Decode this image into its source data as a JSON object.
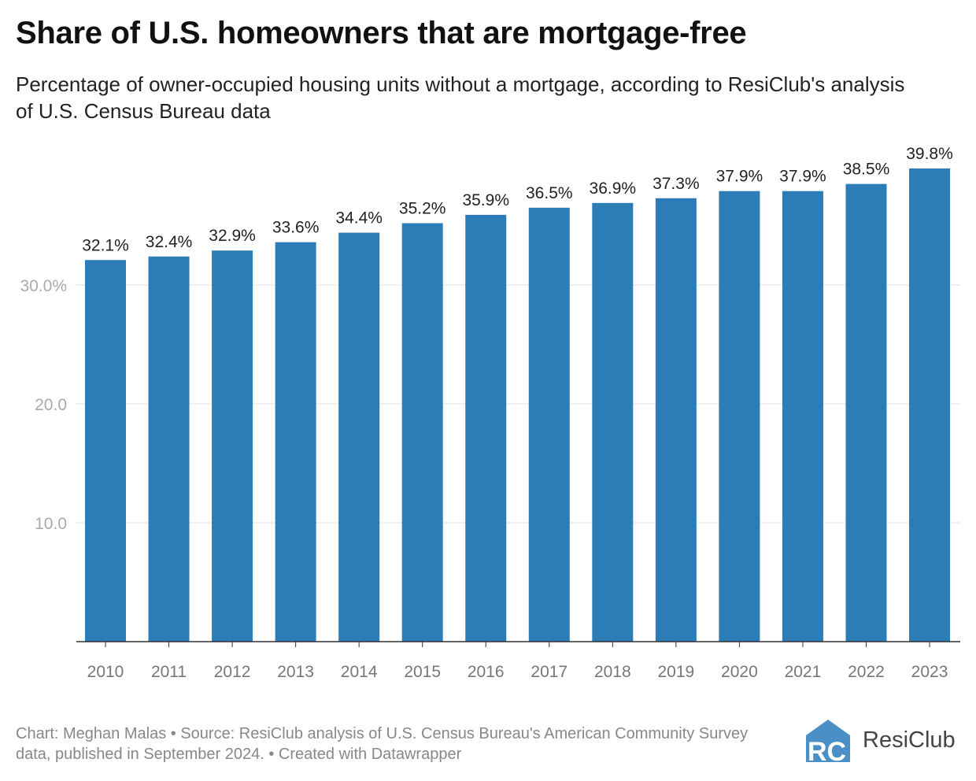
{
  "chart_data": {
    "type": "bar",
    "title": "Share of U.S. homeowners that are mortgage-free",
    "subtitle": "Percentage of owner-occupied housing units without a mortgage, according to ResiClub's analysis of U.S. Census Bureau data",
    "categories": [
      "2010",
      "2011",
      "2012",
      "2013",
      "2014",
      "2015",
      "2016",
      "2017",
      "2018",
      "2019",
      "2020",
      "2021",
      "2022",
      "2023"
    ],
    "values": [
      32.1,
      32.4,
      32.9,
      33.6,
      34.4,
      35.2,
      35.9,
      36.5,
      36.9,
      37.3,
      37.9,
      37.9,
      38.5,
      39.8
    ],
    "data_labels": [
      "32.1%",
      "32.4%",
      "32.9%",
      "33.6%",
      "34.4%",
      "35.2%",
      "35.9%",
      "36.5%",
      "36.9%",
      "37.3%",
      "37.9%",
      "37.9%",
      "38.5%",
      "39.8%"
    ],
    "yticks": [
      10,
      20,
      30
    ],
    "ytick_labels": [
      "10.0",
      "20.0",
      "30.0%"
    ],
    "ylim": [
      0,
      40
    ],
    "xlabel": "",
    "ylabel": "",
    "grid": true,
    "color": "#2c7cb8"
  },
  "footer": {
    "notes": "Chart: Meghan Malas • Source: ResiClub analysis of U.S. Census Bureau's American Community Survey data, published in September 2024. • Created with Datawrapper",
    "logo_text": "ResiClub",
    "logo_color": "#4a8fc6"
  }
}
